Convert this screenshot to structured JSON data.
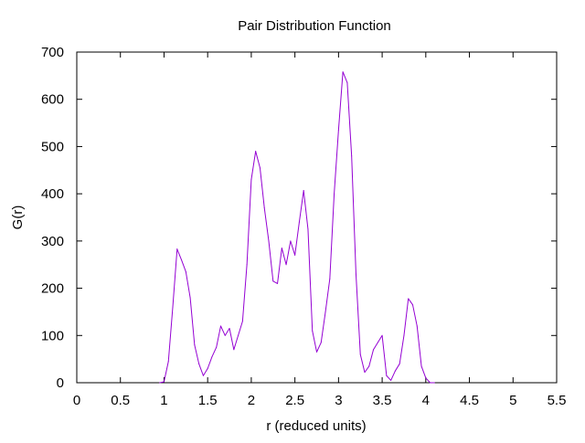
{
  "chart_data": {
    "type": "line",
    "title": "Pair Distribution Function",
    "xlabel": "r (reduced units)",
    "ylabel": "G(r)",
    "xlim": [
      0,
      5.5
    ],
    "ylim": [
      0,
      700
    ],
    "xticks": [
      0,
      0.5,
      1,
      1.5,
      2,
      2.5,
      3,
      3.5,
      4,
      4.5,
      5,
      5.5
    ],
    "xtick_labels": [
      "0",
      "0.5",
      "1",
      "1.5",
      "2",
      "2.5",
      "3",
      "3.5",
      "4",
      "4.5",
      "5",
      "5.5"
    ],
    "yticks": [
      0,
      100,
      200,
      300,
      400,
      500,
      600,
      700
    ],
    "ytick_labels": [
      "0",
      "100",
      "200",
      "300",
      "400",
      "500",
      "600",
      "700"
    ],
    "grid": false,
    "legend": "none",
    "series": [
      {
        "color": "#9400d3",
        "x": [
          0.95,
          1.0,
          1.05,
          1.1,
          1.15,
          1.2,
          1.25,
          1.3,
          1.35,
          1.4,
          1.45,
          1.5,
          1.55,
          1.6,
          1.65,
          1.7,
          1.75,
          1.8,
          1.85,
          1.9,
          1.95,
          2.0,
          2.05,
          2.1,
          2.15,
          2.2,
          2.25,
          2.3,
          2.35,
          2.4,
          2.45,
          2.5,
          2.55,
          2.6,
          2.65,
          2.7,
          2.75,
          2.8,
          2.85,
          2.9,
          2.95,
          3.0,
          3.05,
          3.1,
          3.15,
          3.2,
          3.25,
          3.3,
          3.35,
          3.4,
          3.45,
          3.5,
          3.55,
          3.6,
          3.65,
          3.7,
          3.75,
          3.8,
          3.85,
          3.9,
          3.95,
          4.0,
          4.05,
          4.1
        ],
        "y": [
          0,
          2,
          45,
          160,
          283,
          260,
          235,
          180,
          80,
          40,
          15,
          30,
          55,
          75,
          120,
          100,
          115,
          70,
          100,
          130,
          250,
          430,
          490,
          455,
          370,
          300,
          215,
          210,
          285,
          250,
          300,
          270,
          340,
          407,
          325,
          110,
          65,
          85,
          150,
          220,
          400,
          535,
          658,
          635,
          480,
          230,
          60,
          22,
          35,
          70,
          85,
          100,
          15,
          5,
          25,
          40,
          100,
          178,
          165,
          120,
          35,
          10,
          0,
          0
        ]
      }
    ]
  }
}
